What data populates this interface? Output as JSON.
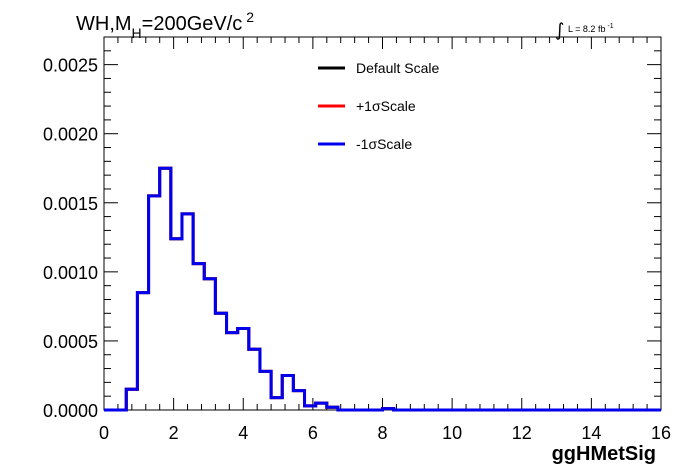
{
  "chart_data": {
    "type": "line",
    "title": {
      "prefix": "WH,M",
      "sub": "H",
      "middle": "=200GeV/c",
      "sup": "2"
    },
    "annotation": {
      "integral_symbol": "∫",
      "text": "L = 8.2 fb",
      "sup": "-1"
    },
    "xlabel": "ggHMetSig",
    "ylabel": "",
    "xlim": [
      0,
      16
    ],
    "ylim": [
      0,
      0.0027
    ],
    "x_ticks": [
      "0",
      "2",
      "4",
      "6",
      "8",
      "10",
      "12",
      "14",
      "16"
    ],
    "y_ticks": [
      "0.0000",
      "0.0005",
      "0.0010",
      "0.0015",
      "0.0020",
      "0.0025"
    ],
    "legend_position": "top-right",
    "bin_width": 0.32,
    "x_start": 0,
    "series": [
      {
        "name": "Default Scale",
        "color": "#000000",
        "values": [
          0,
          0,
          0.00015,
          0.00085,
          0.00155,
          0.00175,
          0.00124,
          0.00142,
          0.00106,
          0.00095,
          0.0007,
          0.00056,
          0.00059,
          0.00044,
          0.00028,
          9e-05,
          0.00025,
          0.00014,
          3e-05,
          5e-05,
          2e-05,
          0,
          0,
          0,
          0,
          1e-05,
          0,
          0,
          0,
          0,
          0,
          0,
          0,
          0,
          0,
          0,
          0,
          0,
          0,
          0,
          0,
          0,
          0,
          0,
          0,
          0,
          0,
          0,
          0,
          0
        ]
      },
      {
        "name": "+1σScale",
        "color": "#ff0000",
        "values": [
          0,
          0,
          0.00015,
          0.00085,
          0.00155,
          0.00175,
          0.00124,
          0.00142,
          0.00106,
          0.00095,
          0.0007,
          0.00056,
          0.00059,
          0.00044,
          0.00028,
          9e-05,
          0.00025,
          0.00014,
          3e-05,
          5e-05,
          2e-05,
          0,
          0,
          0,
          0,
          1e-05,
          0,
          0,
          0,
          0,
          0,
          0,
          0,
          0,
          0,
          0,
          0,
          0,
          0,
          0,
          0,
          0,
          0,
          0,
          0,
          0,
          0,
          0,
          0,
          0
        ]
      },
      {
        "name": "-1σScale",
        "color": "#0000ee",
        "values": [
          0,
          0,
          0.00015,
          0.00085,
          0.00155,
          0.00175,
          0.00124,
          0.00142,
          0.00106,
          0.00095,
          0.0007,
          0.00056,
          0.00059,
          0.00044,
          0.00028,
          9e-05,
          0.00025,
          0.00014,
          3e-05,
          5e-05,
          2e-05,
          0,
          0,
          0,
          0,
          1e-05,
          0,
          0,
          0,
          0,
          0,
          0,
          0,
          0,
          0,
          0,
          0,
          0,
          0,
          0,
          0,
          0,
          0,
          0,
          0,
          0,
          0,
          0,
          0,
          0
        ]
      }
    ]
  }
}
